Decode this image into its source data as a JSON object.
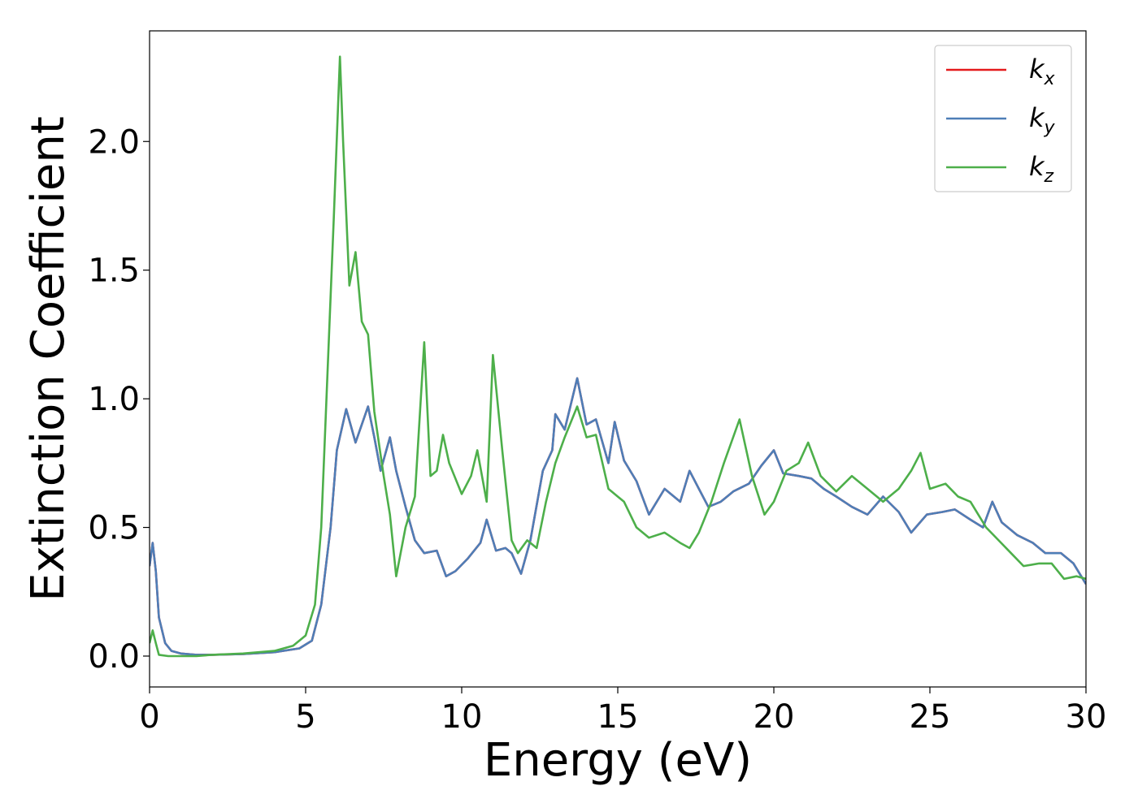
{
  "chart_data": {
    "type": "line",
    "title": "",
    "xlabel": "Energy (eV)",
    "ylabel": "Extinction Coefficient",
    "xlim": [
      0,
      30
    ],
    "ylim": [
      -0.12,
      2.43
    ],
    "x_ticks": [
      0,
      5,
      10,
      15,
      20,
      25,
      30
    ],
    "x_tick_labels": [
      "0",
      "5",
      "10",
      "15",
      "20",
      "25",
      "30"
    ],
    "y_ticks": [
      0.0,
      0.5,
      1.0,
      1.5,
      2.0
    ],
    "y_tick_labels": [
      "0.0",
      "0.5",
      "1.0",
      "1.5",
      "2.0"
    ],
    "grid": false,
    "legend_position": "top-right",
    "series": [
      {
        "name": "k_x",
        "label_base": "k",
        "label_sub": "x",
        "color": "#e41a1c",
        "points": [
          [
            0.0,
            0.35
          ],
          [
            0.1,
            0.44
          ],
          [
            0.2,
            0.33
          ],
          [
            0.3,
            0.15
          ],
          [
            0.5,
            0.05
          ],
          [
            0.7,
            0.02
          ],
          [
            1.0,
            0.01
          ],
          [
            1.5,
            0.005
          ],
          [
            2.0,
            0.005
          ],
          [
            3.0,
            0.008
          ],
          [
            4.0,
            0.015
          ],
          [
            4.8,
            0.03
          ],
          [
            5.2,
            0.06
          ],
          [
            5.5,
            0.2
          ],
          [
            5.8,
            0.5
          ],
          [
            6.0,
            0.8
          ],
          [
            6.3,
            0.96
          ],
          [
            6.6,
            0.83
          ],
          [
            7.0,
            0.97
          ],
          [
            7.2,
            0.85
          ],
          [
            7.4,
            0.72
          ],
          [
            7.7,
            0.85
          ],
          [
            7.9,
            0.72
          ],
          [
            8.2,
            0.58
          ],
          [
            8.5,
            0.45
          ],
          [
            8.8,
            0.4
          ],
          [
            9.2,
            0.41
          ],
          [
            9.5,
            0.31
          ],
          [
            9.8,
            0.33
          ],
          [
            10.2,
            0.38
          ],
          [
            10.6,
            0.44
          ],
          [
            10.8,
            0.53
          ],
          [
            11.1,
            0.41
          ],
          [
            11.4,
            0.42
          ],
          [
            11.6,
            0.4
          ],
          [
            11.9,
            0.32
          ],
          [
            12.2,
            0.45
          ],
          [
            12.6,
            0.72
          ],
          [
            12.9,
            0.8
          ],
          [
            13.0,
            0.94
          ],
          [
            13.3,
            0.88
          ],
          [
            13.7,
            1.08
          ],
          [
            14.0,
            0.9
          ],
          [
            14.3,
            0.92
          ],
          [
            14.7,
            0.75
          ],
          [
            14.9,
            0.91
          ],
          [
            15.2,
            0.76
          ],
          [
            15.6,
            0.68
          ],
          [
            16.0,
            0.55
          ],
          [
            16.5,
            0.65
          ],
          [
            17.0,
            0.6
          ],
          [
            17.3,
            0.72
          ],
          [
            17.6,
            0.65
          ],
          [
            17.9,
            0.58
          ],
          [
            18.3,
            0.6
          ],
          [
            18.7,
            0.64
          ],
          [
            19.2,
            0.67
          ],
          [
            19.6,
            0.74
          ],
          [
            20.0,
            0.8
          ],
          [
            20.3,
            0.71
          ],
          [
            20.8,
            0.7
          ],
          [
            21.2,
            0.69
          ],
          [
            21.6,
            0.65
          ],
          [
            22.0,
            0.62
          ],
          [
            22.5,
            0.58
          ],
          [
            23.0,
            0.55
          ],
          [
            23.5,
            0.62
          ],
          [
            24.0,
            0.56
          ],
          [
            24.4,
            0.48
          ],
          [
            24.9,
            0.55
          ],
          [
            25.4,
            0.56
          ],
          [
            25.8,
            0.57
          ],
          [
            26.3,
            0.53
          ],
          [
            26.7,
            0.5
          ],
          [
            27.0,
            0.6
          ],
          [
            27.3,
            0.52
          ],
          [
            27.8,
            0.47
          ],
          [
            28.3,
            0.44
          ],
          [
            28.7,
            0.4
          ],
          [
            29.2,
            0.4
          ],
          [
            29.6,
            0.36
          ],
          [
            30.0,
            0.28
          ]
        ]
      },
      {
        "name": "k_y",
        "label_base": "k",
        "label_sub": "y",
        "color": "#4e7eb7",
        "points": [
          [
            0.0,
            0.35
          ],
          [
            0.1,
            0.44
          ],
          [
            0.2,
            0.33
          ],
          [
            0.3,
            0.15
          ],
          [
            0.5,
            0.05
          ],
          [
            0.7,
            0.02
          ],
          [
            1.0,
            0.01
          ],
          [
            1.5,
            0.005
          ],
          [
            2.0,
            0.005
          ],
          [
            3.0,
            0.008
          ],
          [
            4.0,
            0.015
          ],
          [
            4.8,
            0.03
          ],
          [
            5.2,
            0.06
          ],
          [
            5.5,
            0.2
          ],
          [
            5.8,
            0.5
          ],
          [
            6.0,
            0.8
          ],
          [
            6.3,
            0.96
          ],
          [
            6.6,
            0.83
          ],
          [
            7.0,
            0.97
          ],
          [
            7.2,
            0.85
          ],
          [
            7.4,
            0.72
          ],
          [
            7.7,
            0.85
          ],
          [
            7.9,
            0.72
          ],
          [
            8.2,
            0.58
          ],
          [
            8.5,
            0.45
          ],
          [
            8.8,
            0.4
          ],
          [
            9.2,
            0.41
          ],
          [
            9.5,
            0.31
          ],
          [
            9.8,
            0.33
          ],
          [
            10.2,
            0.38
          ],
          [
            10.6,
            0.44
          ],
          [
            10.8,
            0.53
          ],
          [
            11.1,
            0.41
          ],
          [
            11.4,
            0.42
          ],
          [
            11.6,
            0.4
          ],
          [
            11.9,
            0.32
          ],
          [
            12.2,
            0.45
          ],
          [
            12.6,
            0.72
          ],
          [
            12.9,
            0.8
          ],
          [
            13.0,
            0.94
          ],
          [
            13.3,
            0.88
          ],
          [
            13.7,
            1.08
          ],
          [
            14.0,
            0.9
          ],
          [
            14.3,
            0.92
          ],
          [
            14.7,
            0.75
          ],
          [
            14.9,
            0.91
          ],
          [
            15.2,
            0.76
          ],
          [
            15.6,
            0.68
          ],
          [
            16.0,
            0.55
          ],
          [
            16.5,
            0.65
          ],
          [
            17.0,
            0.6
          ],
          [
            17.3,
            0.72
          ],
          [
            17.6,
            0.65
          ],
          [
            17.9,
            0.58
          ],
          [
            18.3,
            0.6
          ],
          [
            18.7,
            0.64
          ],
          [
            19.2,
            0.67
          ],
          [
            19.6,
            0.74
          ],
          [
            20.0,
            0.8
          ],
          [
            20.3,
            0.71
          ],
          [
            20.8,
            0.7
          ],
          [
            21.2,
            0.69
          ],
          [
            21.6,
            0.65
          ],
          [
            22.0,
            0.62
          ],
          [
            22.5,
            0.58
          ],
          [
            23.0,
            0.55
          ],
          [
            23.5,
            0.62
          ],
          [
            24.0,
            0.56
          ],
          [
            24.4,
            0.48
          ],
          [
            24.9,
            0.55
          ],
          [
            25.4,
            0.56
          ],
          [
            25.8,
            0.57
          ],
          [
            26.3,
            0.53
          ],
          [
            26.7,
            0.5
          ],
          [
            27.0,
            0.6
          ],
          [
            27.3,
            0.52
          ],
          [
            27.8,
            0.47
          ],
          [
            28.3,
            0.44
          ],
          [
            28.7,
            0.4
          ],
          [
            29.2,
            0.4
          ],
          [
            29.6,
            0.36
          ],
          [
            30.0,
            0.28
          ]
        ]
      },
      {
        "name": "k_z",
        "label_base": "k",
        "label_sub": "z",
        "color": "#4daf4a",
        "points": [
          [
            0.0,
            0.05
          ],
          [
            0.1,
            0.1
          ],
          [
            0.2,
            0.05
          ],
          [
            0.3,
            0.005
          ],
          [
            0.6,
            0.0
          ],
          [
            1.0,
            0.0
          ],
          [
            1.5,
            0.0
          ],
          [
            2.0,
            0.005
          ],
          [
            3.0,
            0.01
          ],
          [
            4.0,
            0.02
          ],
          [
            4.6,
            0.04
          ],
          [
            5.0,
            0.08
          ],
          [
            5.3,
            0.2
          ],
          [
            5.5,
            0.5
          ],
          [
            5.7,
            1.1
          ],
          [
            5.9,
            1.7
          ],
          [
            6.1,
            2.33
          ],
          [
            6.2,
            2.0
          ],
          [
            6.4,
            1.44
          ],
          [
            6.6,
            1.57
          ],
          [
            6.8,
            1.3
          ],
          [
            7.0,
            1.25
          ],
          [
            7.2,
            0.95
          ],
          [
            7.5,
            0.7
          ],
          [
            7.7,
            0.55
          ],
          [
            7.9,
            0.31
          ],
          [
            8.2,
            0.5
          ],
          [
            8.5,
            0.62
          ],
          [
            8.8,
            1.22
          ],
          [
            9.0,
            0.7
          ],
          [
            9.2,
            0.72
          ],
          [
            9.4,
            0.86
          ],
          [
            9.6,
            0.75
          ],
          [
            10.0,
            0.63
          ],
          [
            10.3,
            0.7
          ],
          [
            10.5,
            0.8
          ],
          [
            10.8,
            0.6
          ],
          [
            11.0,
            1.17
          ],
          [
            11.3,
            0.8
          ],
          [
            11.6,
            0.45
          ],
          [
            11.8,
            0.4
          ],
          [
            12.1,
            0.45
          ],
          [
            12.4,
            0.42
          ],
          [
            12.7,
            0.6
          ],
          [
            13.0,
            0.75
          ],
          [
            13.3,
            0.85
          ],
          [
            13.7,
            0.97
          ],
          [
            14.0,
            0.85
          ],
          [
            14.3,
            0.86
          ],
          [
            14.7,
            0.65
          ],
          [
            15.2,
            0.6
          ],
          [
            15.6,
            0.5
          ],
          [
            16.0,
            0.46
          ],
          [
            16.5,
            0.48
          ],
          [
            17.0,
            0.44
          ],
          [
            17.3,
            0.42
          ],
          [
            17.6,
            0.48
          ],
          [
            18.0,
            0.6
          ],
          [
            18.4,
            0.75
          ],
          [
            18.9,
            0.92
          ],
          [
            19.3,
            0.7
          ],
          [
            19.7,
            0.55
          ],
          [
            20.0,
            0.6
          ],
          [
            20.4,
            0.72
          ],
          [
            20.8,
            0.75
          ],
          [
            21.1,
            0.83
          ],
          [
            21.5,
            0.7
          ],
          [
            22.0,
            0.64
          ],
          [
            22.5,
            0.7
          ],
          [
            23.0,
            0.65
          ],
          [
            23.5,
            0.6
          ],
          [
            24.0,
            0.65
          ],
          [
            24.4,
            0.72
          ],
          [
            24.7,
            0.79
          ],
          [
            25.0,
            0.65
          ],
          [
            25.5,
            0.67
          ],
          [
            25.9,
            0.62
          ],
          [
            26.3,
            0.6
          ],
          [
            26.8,
            0.5
          ],
          [
            27.2,
            0.45
          ],
          [
            27.6,
            0.4
          ],
          [
            28.0,
            0.35
          ],
          [
            28.5,
            0.36
          ],
          [
            28.9,
            0.36
          ],
          [
            29.3,
            0.3
          ],
          [
            29.7,
            0.31
          ],
          [
            30.0,
            0.3
          ]
        ]
      }
    ]
  }
}
